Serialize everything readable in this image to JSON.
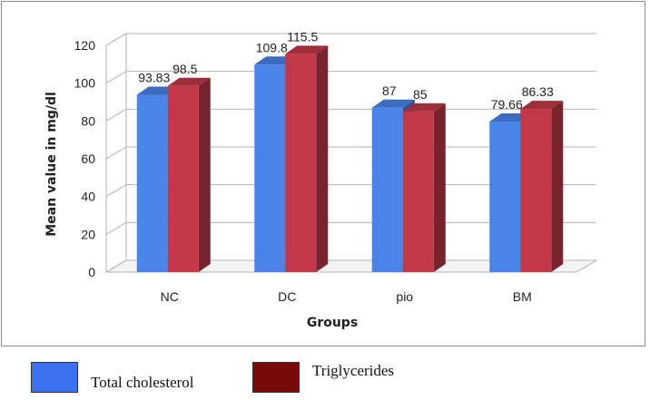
{
  "chart_data": {
    "type": "bar",
    "title": "",
    "xlabel": "Groups",
    "ylabel": "Mean value in mg/dl",
    "categories": [
      "NC",
      "DC",
      "pio",
      "BM"
    ],
    "ylim": [
      0,
      120
    ],
    "yticks": [
      0,
      20,
      40,
      60,
      80,
      100,
      120
    ],
    "ytick_labels": [
      "0",
      "20",
      "40",
      "60",
      "80",
      "100",
      "120"
    ],
    "grid": true,
    "legend_position": "bottom",
    "series": [
      {
        "name": "Total cholesterol",
        "color": "#4a84e8",
        "values": [
          93.83,
          109.8,
          87,
          79.66
        ],
        "labels": [
          "93.83",
          "109.8",
          "87",
          "79.66"
        ]
      },
      {
        "name": "Triglycerides",
        "color": "#c23848",
        "values": [
          98.5,
          115.5,
          85,
          86.33
        ],
        "labels": [
          "98.5",
          "115.5",
          "85",
          "86.33"
        ]
      }
    ]
  },
  "legend": {
    "items": [
      {
        "label": "Total cholesterol",
        "color": "#3a72f0"
      },
      {
        "label": "Triglycerides",
        "color": "#7a0a0a"
      }
    ]
  }
}
